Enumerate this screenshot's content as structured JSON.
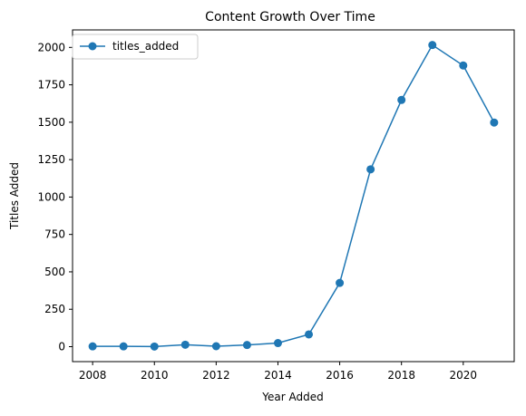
{
  "chart_data": {
    "type": "line",
    "title": "Content Growth Over Time",
    "xlabel": "Year Added",
    "ylabel": "Titles Added",
    "x": [
      2008,
      2009,
      2010,
      2011,
      2012,
      2013,
      2014,
      2015,
      2016,
      2017,
      2018,
      2019,
      2020,
      2021
    ],
    "series": [
      {
        "name": "titles_added",
        "values": [
          2,
          2,
          1,
          13,
          3,
          11,
          24,
          82,
          426,
          1185,
          1649,
          2016,
          1879,
          1498
        ],
        "color": "#1f77b4",
        "marker": "circle"
      }
    ],
    "xlim": [
      2007.35,
      2021.65
    ],
    "ylim": [
      -100,
      2117
    ],
    "xticks": [
      2008,
      2010,
      2012,
      2014,
      2016,
      2018,
      2020
    ],
    "yticks": [
      0,
      250,
      500,
      750,
      1000,
      1250,
      1500,
      1750,
      2000
    ],
    "grid": false,
    "legend_position": "upper left"
  }
}
